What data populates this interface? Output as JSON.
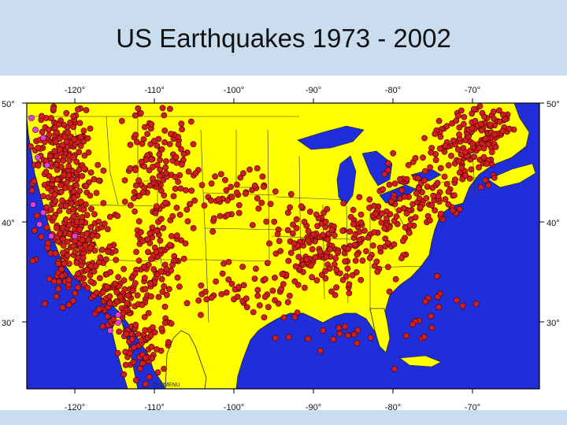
{
  "slide": {
    "title": "US Earthquakes 1973 - 2002"
  },
  "map": {
    "lon_ticks": [
      "-120°",
      "-110°",
      "-100°",
      "-90°",
      "-80°",
      "-70°"
    ],
    "lat_ticks": [
      "50°",
      "40°",
      "30°"
    ],
    "watermark": "ZYUMENU",
    "colors": {
      "ocean": "#1f2ed8",
      "land": "#ffff00",
      "quake_shallow": "#d11d1d",
      "quake_deep": "#e040d8",
      "title_band": "#c9ddee"
    }
  }
}
